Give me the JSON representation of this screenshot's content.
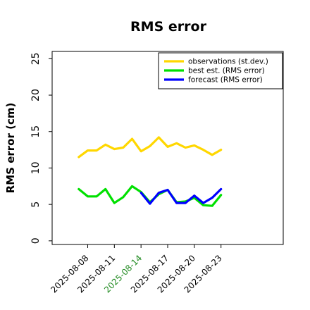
{
  "chart_data": {
    "type": "line",
    "title": "RMS error",
    "ylabel": "RMS error (cm)",
    "xlabel": "",
    "ylim": [
      -0.5,
      26
    ],
    "yticks": [
      0,
      5,
      10,
      15,
      20,
      25
    ],
    "x_index_range": [
      -1,
      25
    ],
    "xticks": [
      {
        "label": "2025-08-08",
        "index": 3,
        "color": "#000000"
      },
      {
        "label": "2025-08-11",
        "index": 6,
        "color": "#000000"
      },
      {
        "label": "2025-08-14",
        "index": 9,
        "color": "#228B22"
      },
      {
        "label": "2025-08-17",
        "index": 12,
        "color": "#000000"
      },
      {
        "label": "2025-08-20",
        "index": 15,
        "color": "#000000"
      },
      {
        "label": "2025-08-23",
        "index": 18,
        "color": "#000000"
      }
    ],
    "legend_position": "top-right",
    "grid": false,
    "series": [
      {
        "name": "observations (st.dev.)",
        "color": "#FFD700",
        "x": [
          2,
          3,
          4,
          5,
          6,
          7,
          8,
          9,
          10,
          11,
          12,
          13,
          14,
          15,
          16,
          17,
          18
        ],
        "values": [
          11.5,
          12.4,
          12.4,
          13.2,
          12.6,
          12.8,
          14.0,
          12.3,
          13.0,
          14.2,
          12.9,
          13.4,
          12.8,
          13.1,
          12.5,
          11.8,
          12.5
        ]
      },
      {
        "name": "best est. (RMS error)",
        "color": "#00E000",
        "x": [
          2,
          3,
          4,
          5,
          6,
          7,
          8,
          9,
          10,
          11,
          12,
          13,
          14,
          15,
          16,
          17,
          18
        ],
        "values": [
          7.1,
          6.1,
          6.1,
          7.1,
          5.2,
          6.0,
          7.5,
          6.7,
          5.3,
          6.4,
          7.0,
          5.3,
          5.4,
          5.9,
          4.9,
          4.8,
          6.3
        ]
      },
      {
        "name": "forecast (RMS error)",
        "color": "#0000FF",
        "x": [
          9,
          10,
          11,
          12,
          13,
          14,
          15,
          16,
          17,
          18
        ],
        "values": [
          6.6,
          5.1,
          6.6,
          7.0,
          5.2,
          5.2,
          6.2,
          5.2,
          5.9,
          7.1
        ]
      }
    ]
  }
}
